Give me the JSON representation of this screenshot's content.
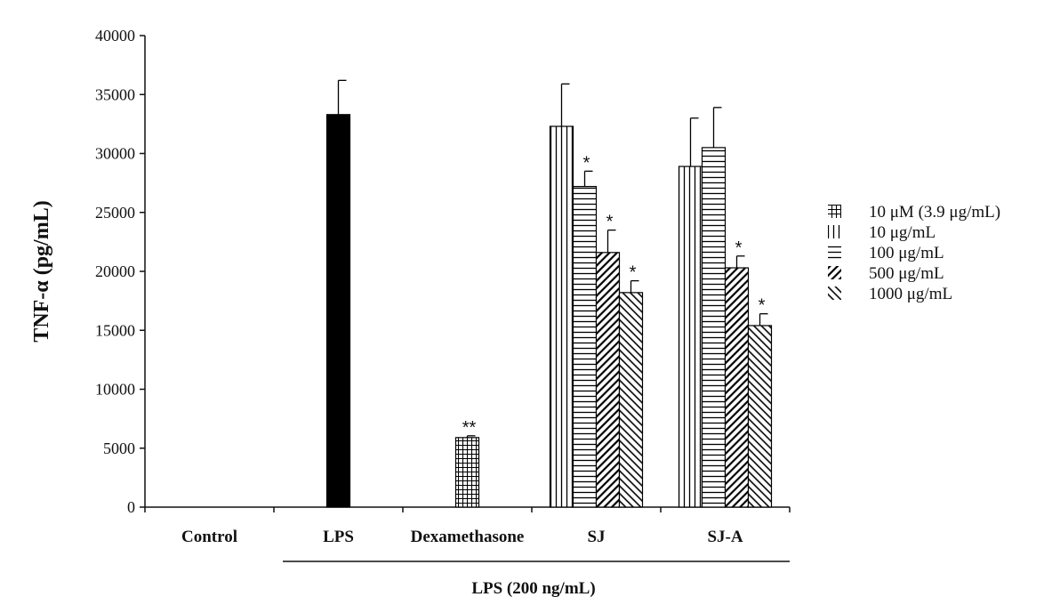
{
  "chart_data": {
    "type": "bar",
    "ylabel": "TNF-α (pg/mL)",
    "ylim": [
      0,
      40000
    ],
    "yticks": [
      "0",
      "5000",
      "10000",
      "15000",
      "20000",
      "25000",
      "30000",
      "35000",
      "40000"
    ],
    "categories": [
      "Control",
      "LPS",
      "Dexamethasone",
      "SJ",
      "SJ-A"
    ],
    "group_label": "LPS (200 ng/mL)",
    "legend": [
      {
        "name": "10 μM (3.9 μg/mL)",
        "pattern": "grid"
      },
      {
        "name": "10 μg/mL",
        "pattern": "vertical"
      },
      {
        "name": "100 μg/mL",
        "pattern": "horizontal"
      },
      {
        "name": "500 μg/mL",
        "pattern": "diag-right"
      },
      {
        "name": "1000 μg/mL",
        "pattern": "diag-left"
      }
    ],
    "legend_position": "right",
    "grid": false,
    "bars": [
      {
        "category": "LPS",
        "pattern": "solid",
        "value": 33300,
        "error": 2900,
        "annotation": ""
      },
      {
        "category": "Dexamethasone",
        "pattern": "grid",
        "value": 5900,
        "error": 150,
        "annotation": "**"
      },
      {
        "category": "SJ",
        "pattern": "vertical",
        "value": 32300,
        "error": 3600,
        "annotation": ""
      },
      {
        "category": "SJ",
        "pattern": "horizontal",
        "value": 27200,
        "error": 1300,
        "annotation": "*"
      },
      {
        "category": "SJ",
        "pattern": "diag-right",
        "value": 21600,
        "error": 1900,
        "annotation": "*"
      },
      {
        "category": "SJ",
        "pattern": "diag-left",
        "value": 18200,
        "error": 1000,
        "annotation": "*"
      },
      {
        "category": "SJ-A",
        "pattern": "vertical",
        "value": 28900,
        "error": 4100,
        "annotation": ""
      },
      {
        "category": "SJ-A",
        "pattern": "horizontal",
        "value": 30500,
        "error": 3400,
        "annotation": ""
      },
      {
        "category": "SJ-A",
        "pattern": "diag-right",
        "value": 20300,
        "error": 1000,
        "annotation": "*"
      },
      {
        "category": "SJ-A",
        "pattern": "diag-left",
        "value": 15400,
        "error": 1000,
        "annotation": "*"
      }
    ]
  }
}
